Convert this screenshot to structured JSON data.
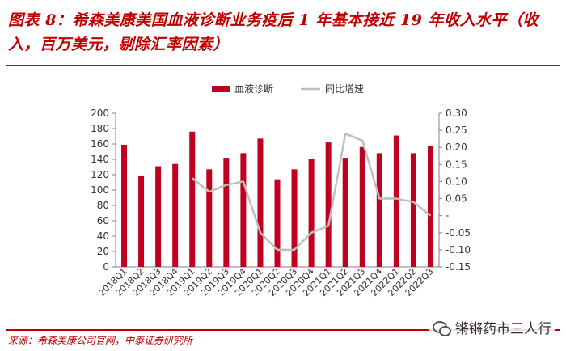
{
  "header": {
    "title": "图表 8：希森美康美国血液诊断业务疫后 1 年基本接近 19 年收入水平（收入，百万美元，剔除汇率因素）"
  },
  "footer": {
    "source": "来源：希森美康公司官网，中泰证券研究所",
    "watermark": "锵锵药市三人行"
  },
  "colors": {
    "bar": "#c00020",
    "line": "#bfbfbf",
    "accent": "#c00000"
  },
  "chart_data": {
    "type": "bar",
    "categories": [
      "2018Q1",
      "2018Q2",
      "2018Q3",
      "2018Q4",
      "2019Q1",
      "2019Q2",
      "2019Q3",
      "2019Q4",
      "2020Q1",
      "2020Q2",
      "2020Q3",
      "2020Q4",
      "2021Q1",
      "2021Q2",
      "2021Q3",
      "2021Q4",
      "2022Q1",
      "2022Q2",
      "2022Q3"
    ],
    "series": [
      {
        "name": "血液诊断",
        "type": "bar",
        "axis": "left",
        "values": [
          159,
          119,
          131,
          134,
          176,
          127,
          142,
          148,
          167,
          114,
          127,
          141,
          162,
          142,
          156,
          148,
          171,
          148,
          157
        ]
      },
      {
        "name": "同比增速",
        "type": "line",
        "axis": "right",
        "values": [
          null,
          null,
          null,
          null,
          0.11,
          0.07,
          0.09,
          0.1,
          -0.05,
          -0.1,
          -0.1,
          -0.05,
          -0.03,
          0.24,
          0.22,
          0.05,
          0.05,
          0.04,
          0.0
        ]
      }
    ],
    "left_axis": {
      "min": 0,
      "max": 200,
      "step": 20,
      "ticks": [
        "0",
        "20",
        "40",
        "60",
        "80",
        "100",
        "120",
        "140",
        "160",
        "180",
        "200"
      ]
    },
    "right_axis": {
      "min": -0.15,
      "max": 0.3,
      "step": 0.05,
      "ticks": [
        "-0.15",
        "-0.10",
        "-0.05",
        "-",
        "0.05",
        "0.10",
        "0.15",
        "0.20",
        "0.25",
        "0.30"
      ]
    },
    "legend_position": "top-center",
    "grid": false
  }
}
